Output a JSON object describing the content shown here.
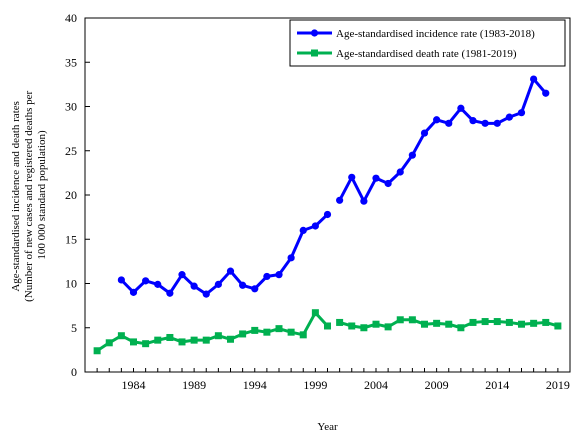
{
  "chart_data": {
    "type": "line",
    "xlabel": "Year",
    "ylabel_lines": [
      "Age-standardised incidence and death rates",
      "(Number of new cases and registered deaths per",
      "100 000 standard population)"
    ],
    "ylim": [
      0,
      40
    ],
    "yticks": [
      0,
      5,
      10,
      15,
      20,
      25,
      30,
      35,
      40
    ],
    "xlim": [
      1980,
      2020
    ],
    "xticks": [
      1984,
      1989,
      1994,
      1999,
      2004,
      2009,
      2014,
      2019
    ],
    "grid": false,
    "legend_position": "top-right",
    "series": [
      {
        "name": "Age-standardised incidence rate (1983-2018)",
        "color": "#0000ff",
        "marker": "circle",
        "segments": [
          {
            "x": [
              1983,
              1984,
              1985,
              1986,
              1987,
              1988,
              1989,
              1990,
              1991,
              1992,
              1993,
              1994,
              1995,
              1996,
              1997,
              1998,
              1999,
              2000
            ],
            "y": [
              10.4,
              9.0,
              10.3,
              9.9,
              8.9,
              11.0,
              9.7,
              8.8,
              9.9,
              11.4,
              9.8,
              9.4,
              10.8,
              11.0,
              12.9,
              16.0,
              16.5,
              17.8
            ]
          },
          {
            "x": [
              2001,
              2002,
              2003,
              2004,
              2005,
              2006,
              2007,
              2008,
              2009,
              2010,
              2011,
              2012,
              2013,
              2014,
              2015,
              2016,
              2017,
              2018
            ],
            "y": [
              19.4,
              22.0,
              19.3,
              21.9,
              21.3,
              22.6,
              24.5,
              27.0,
              28.5,
              28.1,
              29.8,
              28.4,
              28.1,
              28.1,
              28.8,
              29.3,
              33.1,
              31.5
            ]
          }
        ]
      },
      {
        "name": "Age-standardised death rate (1981-2019)",
        "color": "#00b050",
        "marker": "square",
        "segments": [
          {
            "x": [
              1981,
              1982,
              1983,
              1984,
              1985,
              1986,
              1987,
              1988,
              1989,
              1990,
              1991,
              1992,
              1993,
              1994,
              1995,
              1996,
              1997,
              1998,
              1999,
              2000
            ],
            "y": [
              2.4,
              3.3,
              4.1,
              3.4,
              3.2,
              3.6,
              3.9,
              3.4,
              3.6,
              3.6,
              4.1,
              3.7,
              4.3,
              4.7,
              4.5,
              4.9,
              4.5,
              4.2,
              6.7,
              5.2
            ]
          },
          {
            "x": [
              2001,
              2002,
              2003,
              2004,
              2005,
              2006,
              2007,
              2008,
              2009,
              2010,
              2011,
              2012,
              2013,
              2014,
              2015,
              2016,
              2017,
              2018,
              2019
            ],
            "y": [
              5.6,
              5.2,
              5.0,
              5.4,
              5.1,
              5.9,
              5.9,
              5.4,
              5.5,
              5.4,
              5.0,
              5.6,
              5.7,
              5.7,
              5.6,
              5.4,
              5.5,
              5.6,
              5.2
            ]
          }
        ]
      }
    ]
  }
}
